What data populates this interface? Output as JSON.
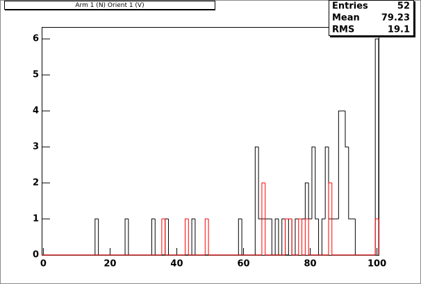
{
  "chart_data": {
    "type": "histogram",
    "title": "Arm 1 (N) Orient 1 (V)",
    "bins": [
      -0.5,
      0.5,
      1.5,
      2.5,
      3.5,
      4.5,
      5.5,
      6.5,
      7.5,
      8.5,
      9.5,
      10.5,
      11.5,
      12.5,
      13.5,
      14.5,
      15.5,
      16.5,
      17.5,
      18.5,
      19.5,
      20.5,
      21.5,
      22.5,
      23.5,
      24.5,
      25.5,
      26.5,
      27.5,
      28.5,
      29.5,
      30.5,
      31.5,
      32.5,
      33.5,
      34.5,
      35.5,
      36.5,
      37.5,
      38.5,
      39.5,
      40.5,
      41.5,
      42.5,
      43.5,
      44.5,
      45.5,
      46.5,
      47.5,
      48.5,
      49.5,
      50.5,
      51.5,
      52.5,
      53.5,
      54.5,
      55.5,
      56.5,
      57.5,
      58.5,
      59.5,
      60.5,
      61.5,
      62.5,
      63.5,
      64.5,
      65.5,
      66.5,
      67.5,
      68.5,
      69.5,
      70.5,
      71.5,
      72.5,
      73.5,
      74.5,
      75.5,
      76.5,
      77.5,
      78.5,
      79.5,
      80.5,
      81.5,
      82.5,
      83.5,
      84.5,
      85.5,
      86.5,
      87.5,
      88.5,
      89.5,
      90.5,
      91.5,
      92.5,
      93.5,
      94.5,
      95.5,
      96.5,
      97.5,
      98.5,
      99.5,
      100.5
    ],
    "series": [
      {
        "color": "#000000",
        "values": [
          0,
          0,
          0,
          0,
          0,
          0,
          0,
          0,
          0,
          0,
          0,
          0,
          0,
          0,
          0,
          0,
          1,
          0,
          0,
          0,
          0,
          0,
          0,
          0,
          0,
          1,
          0,
          0,
          0,
          0,
          0,
          0,
          0,
          1,
          0,
          0,
          0,
          1,
          0,
          0,
          0,
          0,
          0,
          0,
          0,
          1,
          0,
          0,
          0,
          0,
          0,
          0,
          0,
          0,
          0,
          0,
          0,
          0,
          0,
          1,
          0,
          0,
          0,
          0,
          3,
          1,
          1,
          1,
          1,
          0,
          1,
          0,
          1,
          0,
          1,
          0,
          1,
          1,
          1,
          2,
          1,
          3,
          1,
          0,
          1,
          3,
          1,
          1,
          1,
          4,
          4,
          3,
          1,
          1,
          0,
          0,
          0,
          0,
          0,
          0,
          6
        ]
      },
      {
        "color": "#ff0000",
        "values": [
          0,
          0,
          0,
          0,
          0,
          0,
          0,
          0,
          0,
          0,
          0,
          0,
          0,
          0,
          0,
          0,
          0,
          0,
          0,
          0,
          0,
          0,
          0,
          0,
          0,
          0,
          0,
          0,
          0,
          0,
          0,
          0,
          0,
          0,
          0,
          0,
          1,
          0,
          0,
          0,
          0,
          0,
          0,
          1,
          0,
          0,
          0,
          0,
          0,
          1,
          0,
          0,
          0,
          0,
          0,
          0,
          0,
          0,
          0,
          0,
          0,
          0,
          0,
          0,
          0,
          0,
          2,
          0,
          0,
          0,
          0,
          0,
          0,
          1,
          1,
          0,
          0,
          1,
          0,
          1,
          0,
          0,
          0,
          0,
          0,
          0,
          2,
          0,
          0,
          0,
          0,
          0,
          0,
          0,
          0,
          0,
          0,
          0,
          0,
          0,
          1
        ]
      }
    ],
    "xlim": [
      -0.5,
      100.5
    ],
    "ylim": [
      0,
      6.33
    ],
    "xticks": [
      0,
      20,
      40,
      60,
      80,
      100
    ],
    "yticks": [
      0,
      1,
      2,
      3,
      4,
      5,
      6
    ],
    "stats": [
      {
        "label": "Entries",
        "value": "52"
      },
      {
        "label": "Mean",
        "value": "79.23"
      },
      {
        "label": "RMS",
        "value": "19.1"
      }
    ]
  }
}
